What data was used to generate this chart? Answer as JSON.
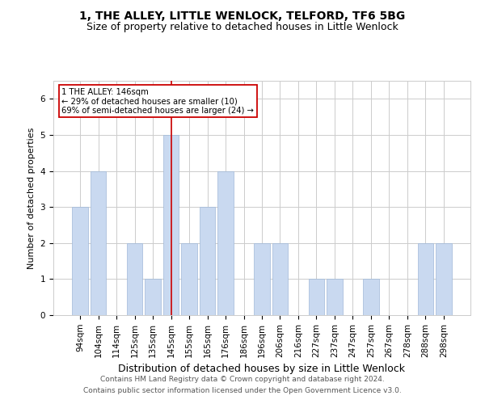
{
  "title1": "1, THE ALLEY, LITTLE WENLOCK, TELFORD, TF6 5BG",
  "title2": "Size of property relative to detached houses in Little Wenlock",
  "xlabel": "Distribution of detached houses by size in Little Wenlock",
  "ylabel": "Number of detached properties",
  "categories": [
    "94sqm",
    "104sqm",
    "114sqm",
    "125sqm",
    "135sqm",
    "145sqm",
    "155sqm",
    "165sqm",
    "176sqm",
    "186sqm",
    "196sqm",
    "206sqm",
    "216sqm",
    "227sqm",
    "237sqm",
    "247sqm",
    "257sqm",
    "267sqm",
    "278sqm",
    "288sqm",
    "298sqm"
  ],
  "values": [
    3,
    4,
    0,
    2,
    1,
    5,
    2,
    3,
    4,
    0,
    2,
    2,
    0,
    1,
    1,
    0,
    1,
    0,
    0,
    2,
    2
  ],
  "bar_color": "#c9d9f0",
  "bar_edge_color": "#a0b8d8",
  "highlight_index": 5,
  "highlight_color": "#cc0000",
  "annotation_text": "1 THE ALLEY: 146sqm\n← 29% of detached houses are smaller (10)\n69% of semi-detached houses are larger (24) →",
  "annotation_box_color": "#ffffff",
  "annotation_box_edge_color": "#cc0000",
  "ylim": [
    0,
    6.5
  ],
  "yticks": [
    0,
    1,
    2,
    3,
    4,
    5,
    6
  ],
  "footer1": "Contains HM Land Registry data © Crown copyright and database right 2024.",
  "footer2": "Contains public sector information licensed under the Open Government Licence v3.0.",
  "bg_color": "#ffffff",
  "grid_color": "#cccccc",
  "title1_fontsize": 10,
  "title2_fontsize": 9,
  "xlabel_fontsize": 9,
  "ylabel_fontsize": 8,
  "tick_fontsize": 7.5,
  "footer_fontsize": 6.5
}
